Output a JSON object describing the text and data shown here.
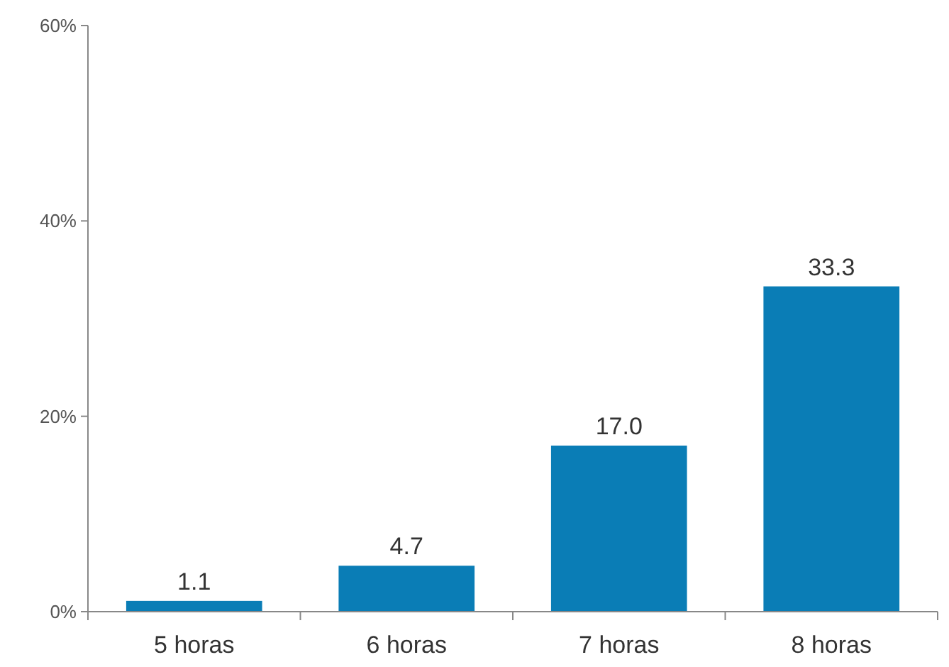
{
  "chart_data": {
    "type": "bar",
    "categories": [
      "5 horas",
      "6 horas",
      "7 horas",
      "8 horas"
    ],
    "values": [
      1.1,
      4.7,
      17.0,
      33.3
    ],
    "color": "#0a7db6",
    "value_labels": [
      "1.1",
      "4.7",
      "17.0",
      "33.3"
    ],
    "ylim": [
      0,
      60
    ],
    "yticks": [
      {
        "value": 0,
        "label": "0%"
      },
      {
        "value": 20,
        "label": "20%"
      },
      {
        "value": 40,
        "label": "40%"
      },
      {
        "value": 60,
        "label": "60%"
      }
    ],
    "grid": false
  }
}
